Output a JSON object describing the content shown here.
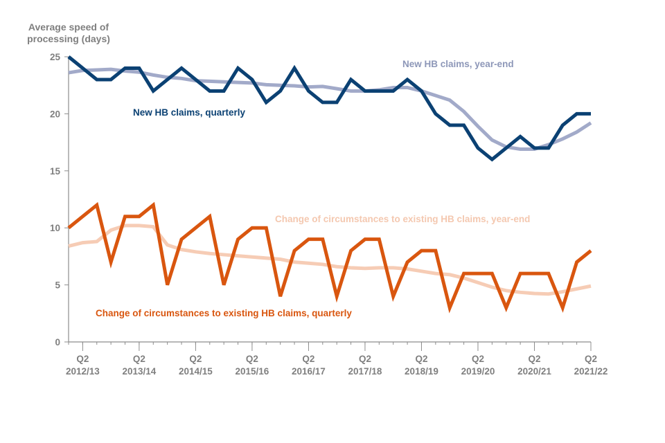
{
  "chart_data": {
    "type": "line",
    "title": "",
    "ylabel": "Average speed of processing (days)",
    "ylabel_lines": [
      "Average speed of",
      "processing (days)"
    ],
    "xlabel": "",
    "ylim": [
      0,
      25
    ],
    "yticks": [
      0,
      5,
      10,
      15,
      20,
      25
    ],
    "grid": false,
    "x_count": 38,
    "x_start": "Q1 2012/13",
    "x_end": "Q2 2021/22",
    "xtick_labels": [
      {
        "index": 1,
        "quarter": "Q2",
        "year": "2012/13"
      },
      {
        "index": 5,
        "quarter": "Q2",
        "year": "2013/14"
      },
      {
        "index": 9,
        "quarter": "Q2",
        "year": "2014/15"
      },
      {
        "index": 13,
        "quarter": "Q2",
        "year": "2015/16"
      },
      {
        "index": 17,
        "quarter": "Q2",
        "year": "2016/17"
      },
      {
        "index": 21,
        "quarter": "Q2",
        "year": "2017/18"
      },
      {
        "index": 25,
        "quarter": "Q2",
        "year": "2018/19"
      },
      {
        "index": 29,
        "quarter": "Q2",
        "year": "2019/20"
      },
      {
        "index": 33,
        "quarter": "Q2",
        "year": "2020/21"
      },
      {
        "index": 37,
        "quarter": "Q2",
        "year": "2021/22"
      }
    ],
    "series": [
      {
        "name": "New HB claims, year-end",
        "color": "#a2aac9",
        "label_color": "#8d97b8",
        "values": [
          23.6,
          23.8,
          23.85,
          23.9,
          23.75,
          23.65,
          23.4,
          23.2,
          23.1,
          22.9,
          22.85,
          22.8,
          22.75,
          22.7,
          22.55,
          22.5,
          22.45,
          22.35,
          22.4,
          22.2,
          22.0,
          22.0,
          22.1,
          22.3,
          22.3,
          22.0,
          21.6,
          21.2,
          20.2,
          18.9,
          17.7,
          17.1,
          16.9,
          16.9,
          17.3,
          17.8,
          18.4,
          19.2
        ]
      },
      {
        "name": "New HB claims, quarterly",
        "color": "#0b4173",
        "label_color": "#0b4173",
        "values": [
          25,
          24,
          23,
          23,
          24,
          24,
          22,
          23,
          24,
          23,
          22,
          22,
          24,
          23,
          21,
          22,
          24,
          22,
          21,
          21,
          23,
          22,
          22,
          22,
          23,
          22,
          20,
          19,
          19,
          17,
          16,
          17,
          18,
          17,
          17,
          19,
          20,
          20
        ]
      },
      {
        "name": "Change of circumstances to existing HB claims, year-end",
        "color": "#f6ccb5",
        "label_color": "#f4c8b0",
        "values": [
          8.4,
          8.7,
          8.8,
          9.8,
          10.2,
          10.2,
          10.1,
          8.5,
          8.1,
          7.9,
          7.75,
          7.65,
          7.55,
          7.45,
          7.35,
          7.25,
          7.0,
          6.9,
          6.8,
          6.6,
          6.5,
          6.45,
          6.5,
          6.5,
          6.4,
          6.2,
          6.0,
          5.9,
          5.6,
          5.2,
          4.8,
          4.5,
          4.35,
          4.25,
          4.2,
          4.4,
          4.65,
          4.9
        ]
      },
      {
        "name": "Change of circumstances to existing HB claims, quarterly",
        "color": "#d9560f",
        "label_color": "#d9560f",
        "values": [
          10,
          11,
          12,
          7,
          11,
          11,
          12,
          5,
          9,
          10,
          11,
          5,
          9,
          10,
          10,
          4,
          8,
          9,
          9,
          4,
          8,
          9,
          9,
          4,
          7,
          8,
          8,
          3,
          6,
          6,
          6,
          3,
          6,
          6,
          6,
          3,
          7,
          8
        ]
      }
    ],
    "legend": "inline annotations"
  }
}
